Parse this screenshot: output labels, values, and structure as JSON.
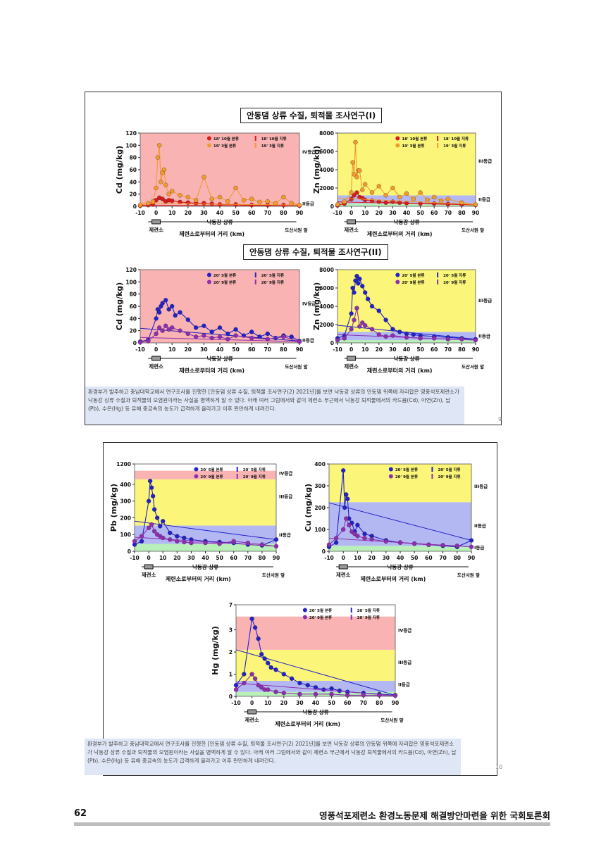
{
  "slide1": {
    "title1": "안동댐 상류 수질, 퇴적물 조사연구(I)",
    "title2": "안동댐 상류 수질, 퇴적물 조사연구(II)",
    "caption": "환경부가 발주하고 충남대학교에서 연구조사를 진행한 [안동댐 상류 수질, 퇴적물 조사연구(2) 2021년]를 보면 낙동강 상류의 안동댐 위쪽에 자리잡은 영풍석포제련소가 낙동강 상류 수질과 퇴적물의 오염원이라는 사실을 명백하게 알 수 있다. 아래 여러 그림에서와 같이 제련소 부근에서 낙동강 퇴적물에서의 카드뮴(Cd), 아연(Zn), 납(Pb), 수은(Hg) 등 유해 중금속의 농도가 급격하게 올라가고 이후 완만하게 내려간다.",
    "page": "9"
  },
  "slide2": {
    "caption": "환경부가 발주하고 충남대학교에서 연구조사를 진행한 [안동댐 상류 수질, 퇴적물 조사연구(2) 2021년]를 보면 낙동강 상류의 안동댐 위쪽에 자리잡은 영풍석포제련소가 낙동강 상류 수질과 퇴적물의 오염원이라는 사실을 명백하게 알 수 있다. 아래 여러 그림에서와 같이 제련소 부근에서 낙동강 퇴적물에서의 카드뮴(Cd), 아연(Zn), 납(Pb), 수은(Hg) 등 유해 중금속의 농도가 급격하게 올라가고 이후 완만하게 내려간다.",
    "page": "10"
  },
  "footer": {
    "page_number": "62",
    "title": "영풍석포제련소 환경노동문제 해결방안마련을 위한 국회토론회"
  },
  "common": {
    "river_label": "낙동강 상류",
    "smelter_label": "제련소",
    "xlabel": "제련소로부터의 거리 (km)",
    "end_label": "도산서원 앞"
  },
  "chart_data": [
    {
      "id": "cd1",
      "type": "line",
      "ylabel": "Cd (mg/kg)",
      "ylim": [
        0,
        120
      ],
      "yticks": [
        0,
        20,
        40,
        60,
        80,
        100,
        120
      ],
      "xlim": [
        -10,
        90
      ],
      "xticks": [
        -10,
        0,
        10,
        20,
        30,
        40,
        50,
        60,
        70,
        80,
        90
      ],
      "bands": [
        {
          "from": 0,
          "to": 120,
          "color": "#f9b3b3"
        }
      ],
      "grades": [
        {
          "label": "IV등급",
          "y": 90
        },
        {
          "label": "II등급",
          "y": 5
        }
      ],
      "legend": [
        "18' 10월 본류",
        "18' 10월 지류",
        "19' 3월 본류",
        "19' 3월 지류"
      ],
      "series": [
        {
          "name": "18' 10월 본류",
          "color": "#d81b1b",
          "x": [
            -10,
            -5,
            -2,
            0,
            2,
            4,
            6,
            8,
            10,
            15,
            20,
            25,
            30,
            35,
            40,
            50,
            60,
            70,
            80,
            90
          ],
          "y": [
            1,
            2,
            3,
            10,
            14,
            12,
            8,
            10,
            9,
            7,
            6,
            5,
            5,
            4,
            3,
            3,
            2,
            2,
            2,
            1
          ]
        },
        {
          "name": "19' 3월 본류",
          "color": "#f39a2e",
          "x": [
            -10,
            -5,
            -2,
            0,
            1,
            2,
            3,
            4,
            5,
            6,
            8,
            10,
            15,
            20,
            25,
            30,
            35,
            40,
            45,
            50,
            55,
            60,
            65,
            70,
            75,
            80,
            85,
            90
          ],
          "y": [
            2,
            5,
            8,
            30,
            80,
            100,
            40,
            55,
            60,
            35,
            20,
            25,
            18,
            15,
            10,
            48,
            12,
            15,
            8,
            30,
            10,
            12,
            7,
            8,
            5,
            15,
            5,
            2
          ]
        }
      ]
    },
    {
      "id": "zn1",
      "type": "line",
      "ylabel": "Zn (mg/kg)",
      "ylim": [
        0,
        8000
      ],
      "yticks": [
        0,
        2000,
        4000,
        6000,
        8000
      ],
      "xlim": [
        -10,
        90
      ],
      "xticks": [
        -10,
        0,
        10,
        20,
        30,
        40,
        50,
        60,
        70,
        80,
        90
      ],
      "bands": [
        {
          "from": 0,
          "to": 300,
          "color": "#b9f0b9"
        },
        {
          "from": 300,
          "to": 1200,
          "color": "#b3b8f2"
        },
        {
          "from": 1200,
          "to": 8000,
          "color": "#fbf57a"
        }
      ],
      "grades": [
        {
          "label": "III등급",
          "y": 5000
        },
        {
          "label": "II등급",
          "y": 800
        }
      ],
      "legend": [
        "18' 10월 본류",
        "18' 10월 지류",
        "19' 3월 본류",
        "19' 3월 지류"
      ],
      "series": [
        {
          "name": "18' 10월 본류",
          "color": "#d81b1b",
          "x": [
            -10,
            -5,
            0,
            2,
            4,
            6,
            8,
            10,
            15,
            20,
            25,
            30,
            35,
            40,
            50,
            60,
            70,
            80,
            90
          ],
          "y": [
            100,
            300,
            800,
            1200,
            1500,
            1000,
            900,
            700,
            600,
            500,
            400,
            500,
            400,
            350,
            300,
            300,
            250,
            200,
            150
          ]
        },
        {
          "name": "19' 3월 본류",
          "color": "#f39a2e",
          "x": [
            -10,
            -5,
            0,
            1,
            2,
            3,
            4,
            5,
            6,
            8,
            10,
            15,
            20,
            25,
            30,
            35,
            40,
            45,
            50,
            55,
            60,
            65,
            70,
            80,
            90
          ],
          "y": [
            200,
            500,
            1500,
            4800,
            3500,
            7000,
            3200,
            3900,
            3900,
            1800,
            2400,
            1500,
            2200,
            1200,
            2000,
            1000,
            1400,
            800,
            1500,
            700,
            1000,
            600,
            800,
            400,
            200
          ]
        }
      ]
    },
    {
      "id": "cd2",
      "type": "line",
      "ylabel": "Cd (mg/kg)",
      "ylim": [
        0,
        120
      ],
      "yticks": [
        0,
        20,
        40,
        60,
        80,
        100,
        120
      ],
      "xlim": [
        -10,
        90
      ],
      "xticks": [
        -10,
        0,
        10,
        20,
        30,
        40,
        50,
        60,
        70,
        80,
        90
      ],
      "bands": [
        {
          "from": 0,
          "to": 120,
          "color": "#f9b3b3"
        }
      ],
      "grades": [
        {
          "label": "IV등급",
          "y": 65
        },
        {
          "label": "II등급",
          "y": 5
        }
      ],
      "legend": [
        "20' 5월 본류",
        "20' 5월 지류",
        "20' 9월 본류",
        "20' 9월 지류"
      ],
      "series": [
        {
          "name": "20' 5월 본류",
          "color": "#2222c8",
          "x": [
            -10,
            -5,
            0,
            1,
            2,
            3,
            4,
            6,
            8,
            10,
            12,
            15,
            20,
            25,
            30,
            35,
            40,
            45,
            50,
            55,
            60,
            65,
            70,
            75,
            80,
            85,
            90
          ],
          "y": [
            2,
            5,
            40,
            55,
            50,
            60,
            65,
            70,
            55,
            60,
            45,
            50,
            38,
            25,
            28,
            18,
            25,
            15,
            22,
            12,
            18,
            10,
            15,
            8,
            12,
            10,
            3
          ]
        },
        {
          "name": "20' 9월 본류",
          "color": "#8e2fb0",
          "x": [
            -10,
            -5,
            0,
            2,
            4,
            6,
            8,
            10,
            15,
            20,
            25,
            30,
            35,
            40,
            45,
            50,
            60,
            70,
            80,
            90
          ],
          "y": [
            1,
            3,
            15,
            25,
            20,
            28,
            22,
            25,
            20,
            15,
            10,
            12,
            8,
            10,
            6,
            12,
            8,
            6,
            10,
            2
          ]
        }
      ]
    },
    {
      "id": "zn2",
      "type": "line",
      "ylabel": "Zn (mg/kg)",
      "ylim": [
        0,
        8000
      ],
      "yticks": [
        0,
        2000,
        4000,
        6000,
        8000
      ],
      "xlim": [
        -10,
        90
      ],
      "xticks": [
        -10,
        0,
        10,
        20,
        30,
        40,
        50,
        60,
        70,
        80,
        90
      ],
      "bands": [
        {
          "from": 0,
          "to": 300,
          "color": "#b9f0b9"
        },
        {
          "from": 300,
          "to": 1200,
          "color": "#b3b8f2"
        },
        {
          "from": 1200,
          "to": 8000,
          "color": "#fbf57a"
        }
      ],
      "grades": [
        {
          "label": "III등급",
          "y": 4700
        },
        {
          "label": "II등급",
          "y": 800
        }
      ],
      "legend": [
        "20' 5월 본류",
        "20' 5월 지류",
        "20' 9월 본류",
        "20' 9월 지류"
      ],
      "series": [
        {
          "name": "20' 5월 본류",
          "color": "#2222c8",
          "x": [
            -10,
            -5,
            0,
            1,
            2,
            3,
            4,
            5,
            6,
            8,
            10,
            12,
            15,
            20,
            25,
            30,
            35,
            40,
            45,
            50,
            60,
            70,
            80,
            90
          ],
          "y": [
            500,
            800,
            3200,
            6000,
            5500,
            6800,
            7300,
            6500,
            7000,
            6200,
            5500,
            4800,
            4000,
            3500,
            2500,
            1500,
            1200,
            1000,
            900,
            800,
            700,
            600,
            500,
            400
          ]
        },
        {
          "name": "20' 9월 본류",
          "color": "#8e2fb0",
          "x": [
            -10,
            -5,
            0,
            2,
            4,
            6,
            8,
            10,
            15,
            20,
            25,
            30,
            40,
            50,
            60,
            70,
            80,
            90
          ],
          "y": [
            300,
            500,
            1500,
            2500,
            3800,
            1800,
            2200,
            1900,
            1500,
            900,
            700,
            800,
            600,
            500,
            500,
            400,
            400,
            300
          ]
        }
      ]
    },
    {
      "id": "pb",
      "type": "line",
      "ylabel": "Pb (mg/kg)",
      "ylim": [
        0,
        1200
      ],
      "yticks": [
        0,
        100,
        200,
        300,
        400,
        1200
      ],
      "ybreak": true,
      "xlim": [
        -10,
        90
      ],
      "xticks": [
        -10,
        0,
        10,
        20,
        30,
        40,
        50,
        60,
        70,
        80,
        90
      ],
      "bands": [
        {
          "from": 0,
          "to": 44,
          "color": "#b9f0b9"
        },
        {
          "from": 44,
          "to": 154,
          "color": "#b3b8f2"
        },
        {
          "from": 154,
          "to": 430,
          "color": "#fbf57a"
        },
        {
          "from": 430,
          "to": 500,
          "color": "#f9b3b3"
        }
      ],
      "grades": [
        {
          "label": "IV등급",
          "y": 470
        },
        {
          "label": "III등급",
          "y": 330
        },
        {
          "label": "II등급",
          "y": 100
        }
      ],
      "legend": [
        "20' 5월 본류",
        "20' 5월 지류",
        "20' 9월 본류",
        "20' 9월 지류"
      ],
      "series": [
        {
          "name": "20' 5월 본류",
          "color": "#2222c8",
          "x": [
            -10,
            -5,
            0,
            1,
            2,
            3,
            4,
            6,
            8,
            10,
            15,
            20,
            25,
            30,
            40,
            50,
            60,
            70,
            80,
            90
          ],
          "y": [
            40,
            60,
            300,
            420,
            380,
            330,
            250,
            200,
            150,
            180,
            110,
            90,
            80,
            70,
            60,
            55,
            50,
            40,
            35,
            70
          ]
        },
        {
          "name": "20' 9월 본류",
          "color": "#8e2fb0",
          "x": [
            -10,
            -5,
            0,
            2,
            4,
            6,
            8,
            10,
            15,
            20,
            25,
            30,
            40,
            50,
            60,
            70,
            80,
            90
          ],
          "y": [
            60,
            90,
            140,
            160,
            120,
            100,
            90,
            80,
            70,
            60,
            55,
            50,
            50,
            45,
            60,
            50,
            40,
            30
          ]
        }
      ]
    },
    {
      "id": "cu",
      "type": "line",
      "ylabel": "Cu (mg/kg)",
      "ylim": [
        0,
        400
      ],
      "yticks": [
        0,
        100,
        200,
        300,
        400
      ],
      "xlim": [
        -10,
        90
      ],
      "xticks": [
        -10,
        0,
        10,
        20,
        30,
        40,
        50,
        60,
        70,
        80,
        90
      ],
      "bands": [
        {
          "from": 0,
          "to": 25,
          "color": "#b9f0b9"
        },
        {
          "from": 25,
          "to": 225,
          "color": "#b3b8f2"
        },
        {
          "from": 225,
          "to": 400,
          "color": "#fbf57a"
        }
      ],
      "grades": [
        {
          "label": "III등급",
          "y": 300
        },
        {
          "label": "II등급",
          "y": 120
        },
        {
          "label": "I등급",
          "y": 20
        }
      ],
      "legend": [
        "20' 5월 본류",
        "20' 5월 지류",
        "20' 9월 본류",
        "20' 9월 지류"
      ],
      "series": [
        {
          "name": "20' 5월 본류",
          "color": "#2222c8",
          "x": [
            -10,
            -5,
            0,
            1,
            2,
            3,
            4,
            6,
            8,
            10,
            15,
            20,
            30,
            40,
            50,
            60,
            70,
            80,
            90
          ],
          "y": [
            20,
            40,
            370,
            200,
            260,
            240,
            150,
            130,
            90,
            120,
            80,
            70,
            50,
            40,
            35,
            30,
            25,
            20,
            50
          ]
        },
        {
          "name": "20' 9월 본류",
          "color": "#8e2fb0",
          "x": [
            -10,
            -5,
            0,
            2,
            4,
            6,
            8,
            10,
            15,
            20,
            30,
            40,
            50,
            60,
            70,
            80,
            90
          ],
          "y": [
            30,
            60,
            100,
            150,
            120,
            90,
            80,
            70,
            60,
            55,
            45,
            40,
            35,
            30,
            28,
            25,
            20
          ]
        }
      ]
    },
    {
      "id": "hg",
      "type": "line",
      "ylabel": "Hg (mg/kg)",
      "ylim": [
        0,
        7
      ],
      "yticks": [
        0,
        1,
        2,
        3,
        7
      ],
      "ybreak": true,
      "xlim": [
        -10,
        90
      ],
      "xticks": [
        -10,
        0,
        10,
        20,
        30,
        40,
        50,
        60,
        70,
        80,
        90
      ],
      "bands": [
        {
          "from": 0,
          "to": 0.2,
          "color": "#b9f0b9"
        },
        {
          "from": 0.2,
          "to": 0.7,
          "color": "#b3b8f2"
        },
        {
          "from": 0.7,
          "to": 2.1,
          "color": "#fbf57a"
        },
        {
          "from": 2.1,
          "to": 3.6,
          "color": "#f9b3b3"
        }
      ],
      "grades": [
        {
          "label": "IV등급",
          "y": 3.0
        },
        {
          "label": "III등급",
          "y": 1.55
        },
        {
          "label": "II등급",
          "y": 0.55
        }
      ],
      "legend": [
        "20' 5월 본류",
        "20' 5월 지류",
        "20' 9월 본류",
        "20' 9월 지류"
      ],
      "series": [
        {
          "name": "20' 5월 본류",
          "color": "#2222c8",
          "x": [
            -10,
            -5,
            0,
            2,
            4,
            6,
            8,
            10,
            12,
            15,
            20,
            25,
            30,
            35,
            40,
            45,
            50,
            55,
            60,
            70,
            80,
            90
          ],
          "y": [
            0.5,
            1.0,
            3.5,
            3.1,
            2.6,
            1.9,
            1.7,
            1.5,
            1.3,
            1.2,
            1.0,
            0.8,
            0.6,
            0.5,
            0.4,
            0.3,
            0.35,
            0.25,
            0.2,
            0.15,
            0.1,
            0.05
          ]
        },
        {
          "name": "20' 9월 본류",
          "color": "#8e2fb0",
          "x": [
            -10,
            -5,
            0,
            2,
            4,
            6,
            8,
            10,
            15,
            20,
            30,
            40,
            50,
            60,
            70,
            80,
            90
          ],
          "y": [
            0.3,
            0.6,
            1.0,
            0.8,
            0.5,
            0.4,
            0.3,
            0.3,
            0.2,
            0.15,
            0.1,
            0.1,
            0.1,
            0.05,
            0.05,
            0.05,
            0.03
          ]
        }
      ]
    }
  ]
}
